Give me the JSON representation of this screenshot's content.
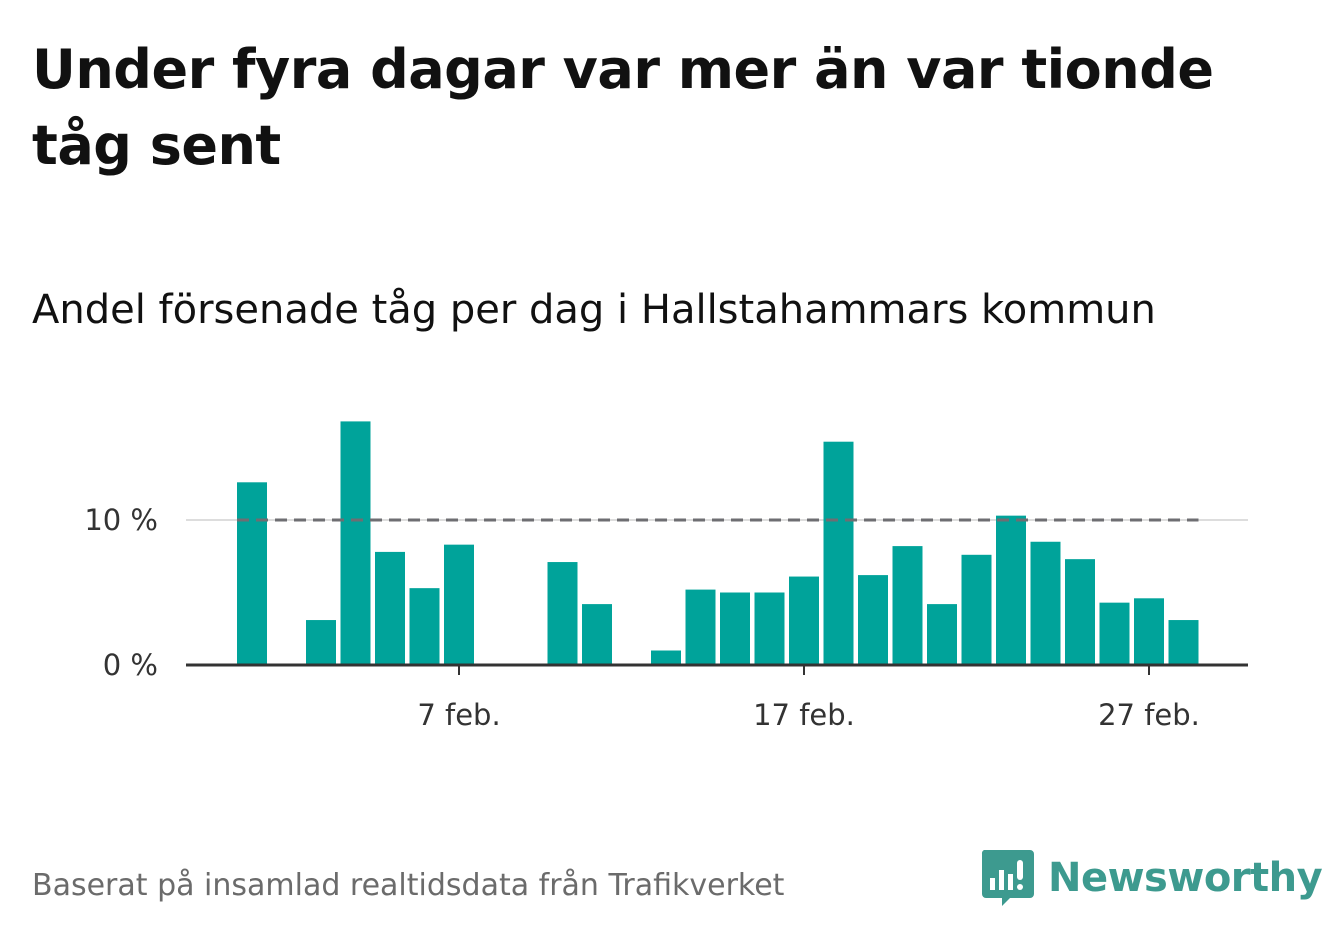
{
  "title": "Under fyra dagar var mer än var tionde tåg sent",
  "subtitle": "Andel försenade tåg per dag i Hallstahammars kommun",
  "source": "Baserat på insamlad realtidsdata från Trafikverket",
  "logo": {
    "text": "Newsworthy",
    "icon": "newsworthy-bars-icon",
    "color": "#3d9a8f"
  },
  "colors": {
    "bar": "#00a39a",
    "threshold": "#6e6e72",
    "grid": "#dddddd",
    "axis": "#333333"
  },
  "chart_data": {
    "type": "bar",
    "categories": [
      "1 feb.",
      "2 feb.",
      "3 feb.",
      "4 feb.",
      "5 feb.",
      "6 feb.",
      "7 feb.",
      "8 feb.",
      "9 feb.",
      "10 feb.",
      "11 feb.",
      "12 feb.",
      "13 feb.",
      "14 feb.",
      "15 feb.",
      "16 feb.",
      "17 feb.",
      "18 feb.",
      "19 feb.",
      "20 feb.",
      "21 feb.",
      "22 feb.",
      "23 feb.",
      "24 feb.",
      "25 feb.",
      "26 feb.",
      "27 feb.",
      "28 feb."
    ],
    "values": [
      12.6,
      0,
      3.1,
      16.8,
      7.8,
      5.3,
      8.3,
      0,
      0,
      7.1,
      4.2,
      0,
      1.0,
      5.2,
      5.0,
      5.0,
      6.1,
      15.4,
      6.2,
      8.2,
      4.2,
      7.6,
      10.3,
      8.5,
      7.3,
      4.3,
      4.6,
      3.1
    ],
    "ylim": [
      0,
      17
    ],
    "yticks": [
      {
        "value": 0,
        "label": "0 %"
      },
      {
        "value": 10,
        "label": "10 %"
      }
    ],
    "xticks": [
      {
        "index": 6,
        "label": "7 feb."
      },
      {
        "index": 16,
        "label": "17 feb."
      },
      {
        "index": 26,
        "label": "27 feb."
      }
    ],
    "threshold": 10
  }
}
